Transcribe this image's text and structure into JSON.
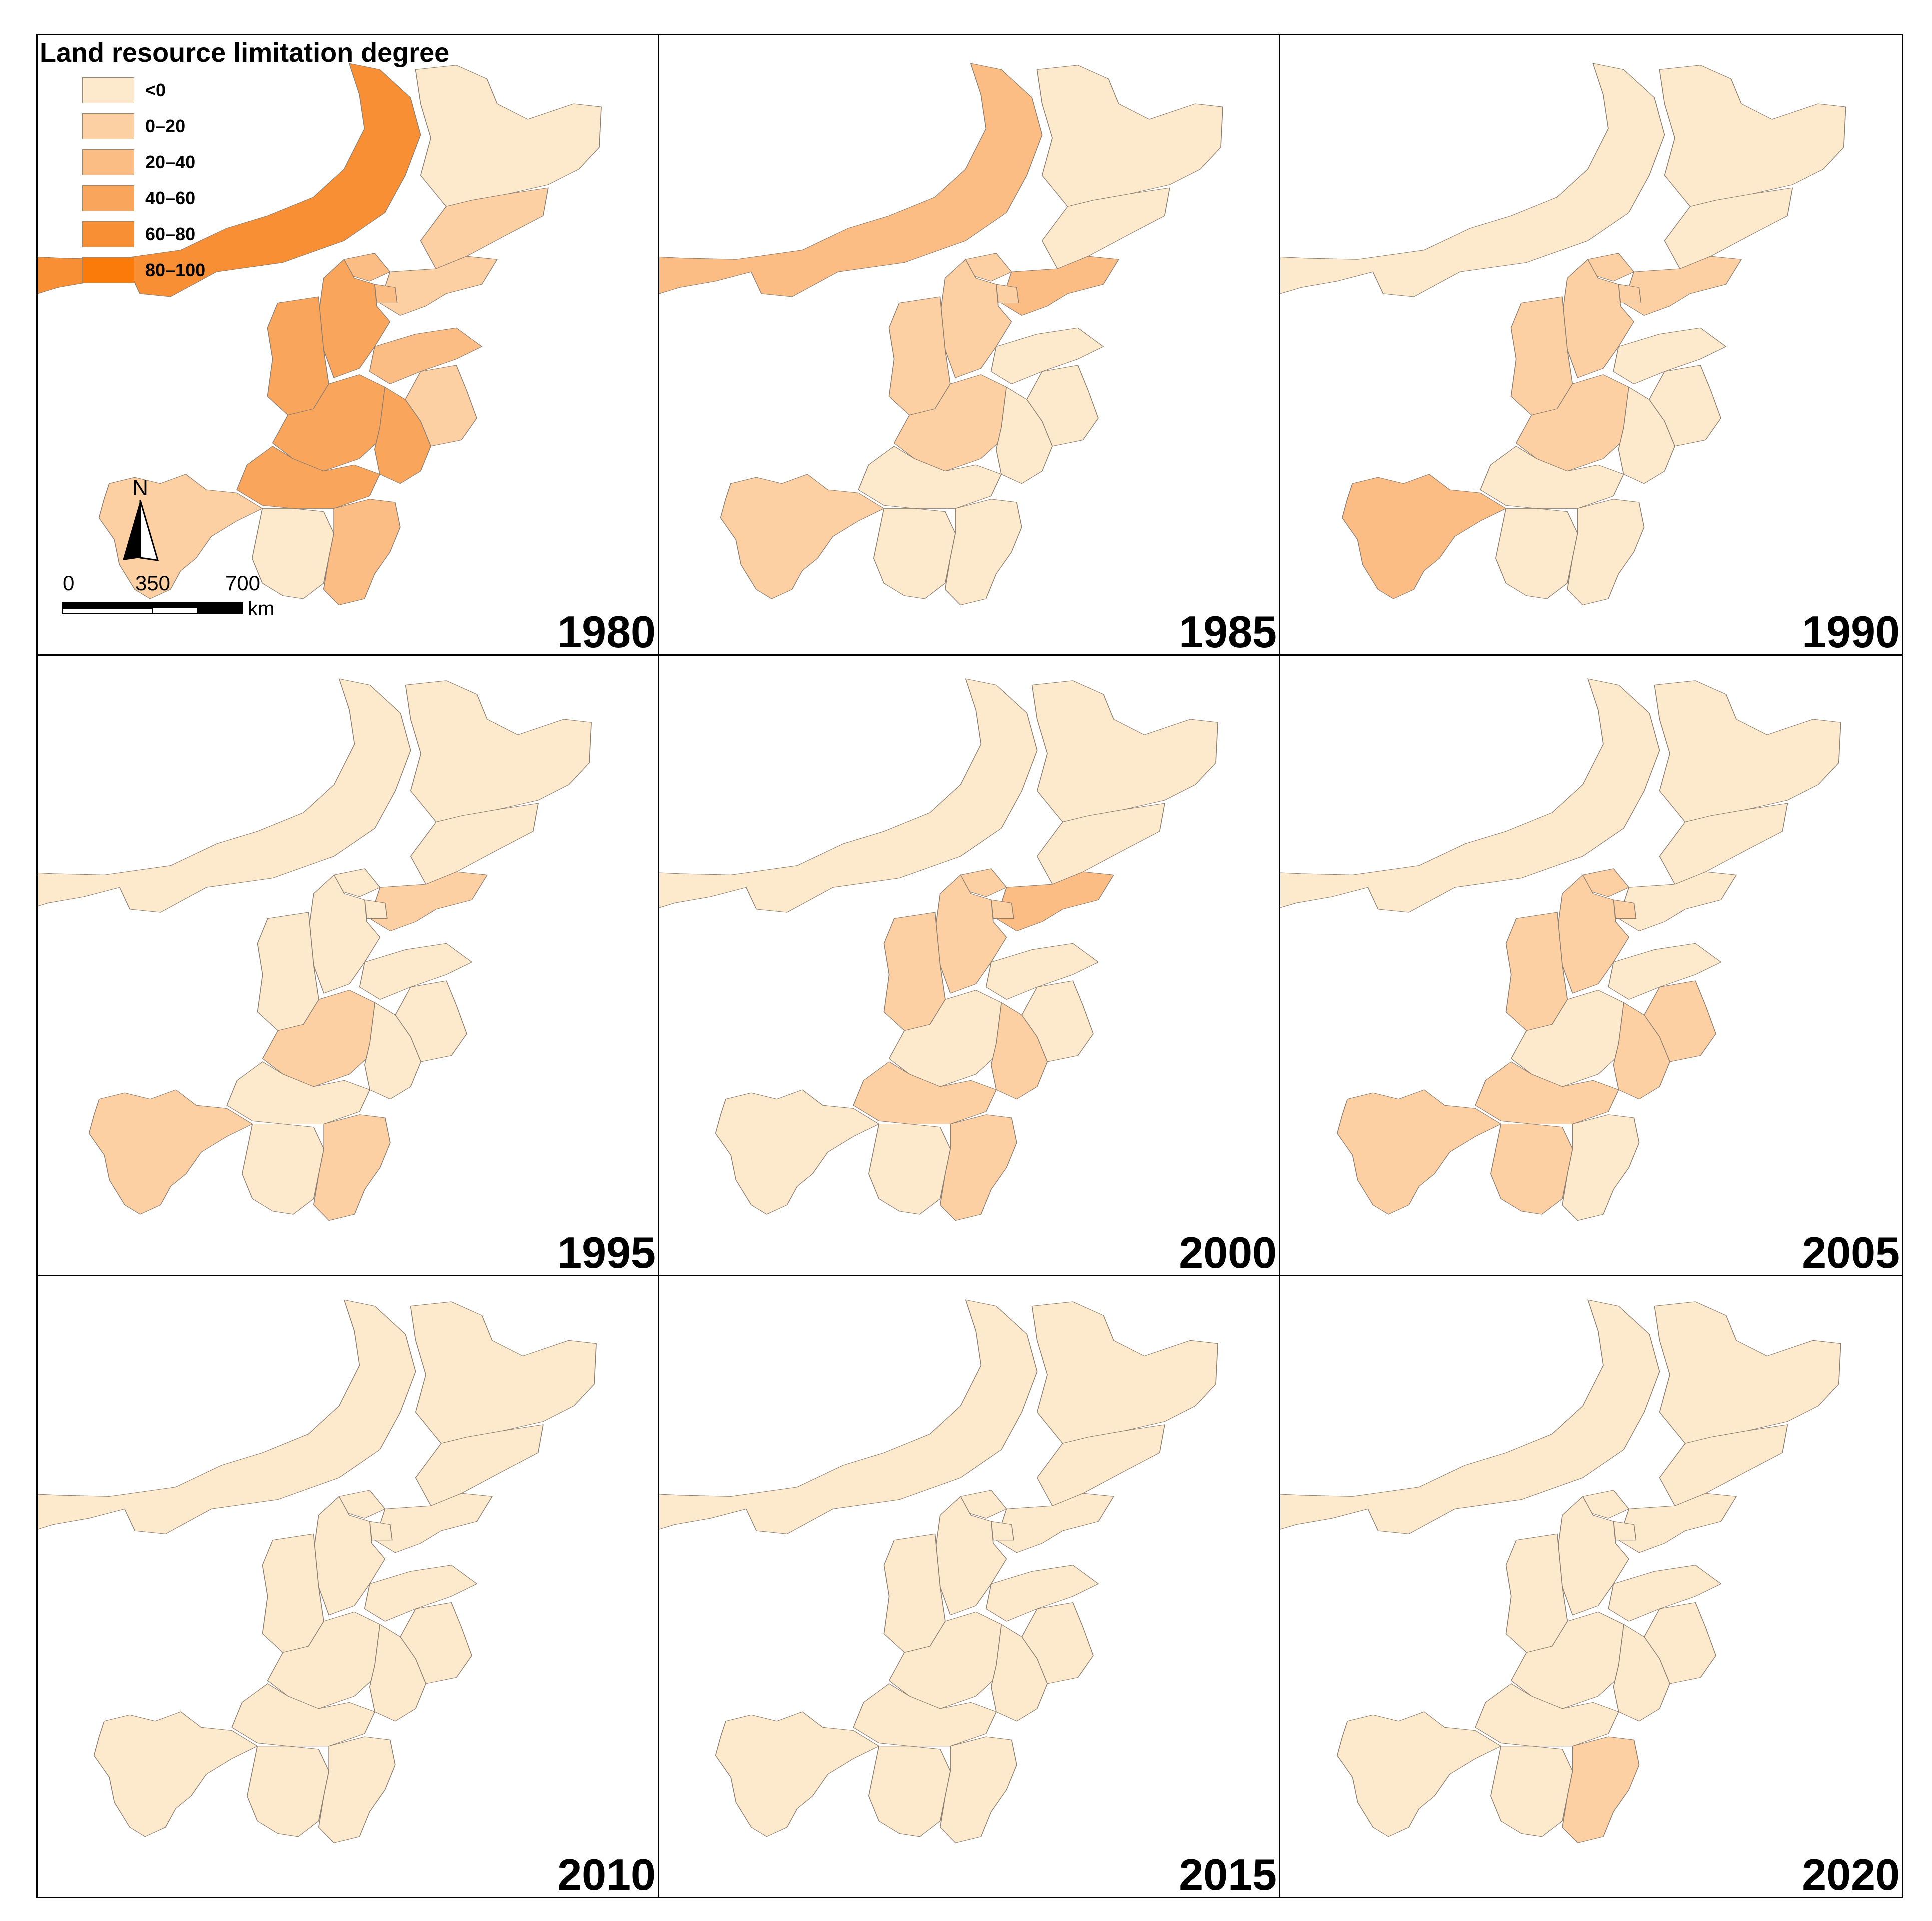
{
  "legend": {
    "title": "Land resource limitation degree",
    "classes": [
      {
        "label": "<0",
        "color": "#fde9cb"
      },
      {
        "label": "0–20",
        "color": "#fdd0a3"
      },
      {
        "label": "20–40",
        "color": "#fcbd84"
      },
      {
        "label": "40–60",
        "color": "#f9a55b"
      },
      {
        "label": "60–80",
        "color": "#f88f34"
      },
      {
        "label": "80–100",
        "color": "#fb7b0a"
      }
    ]
  },
  "north_label": "N",
  "scale_bar": {
    "ticks": [
      "0",
      "350",
      "700"
    ],
    "unit": "km"
  },
  "panels": [
    {
      "year": "1980",
      "classes": {
        "inner_mongolia": 4,
        "heilongjiang": 0,
        "jilin": 1,
        "liaoning": 1,
        "beijing": 2,
        "tianjin": 2,
        "hebei": 3,
        "shanxi": 3,
        "shandong": 2,
        "henan": 3,
        "anhui": 3,
        "jiangsu": 1,
        "hubei": 3,
        "sichuan": 1,
        "hunan": 0,
        "jiangxi": 2
      }
    },
    {
      "year": "1985",
      "classes": {
        "inner_mongolia": 2,
        "heilongjiang": 0,
        "jilin": 0,
        "liaoning": 2,
        "beijing": 1,
        "tianjin": 1,
        "hebei": 1,
        "shanxi": 1,
        "shandong": 0,
        "henan": 1,
        "anhui": 0,
        "jiangsu": 0,
        "hubei": 0,
        "sichuan": 1,
        "hunan": 0,
        "jiangxi": 0
      }
    },
    {
      "year": "1990",
      "classes": {
        "inner_mongolia": 0,
        "heilongjiang": 0,
        "jilin": 0,
        "liaoning": 1,
        "beijing": 1,
        "tianjin": 1,
        "hebei": 1,
        "shanxi": 1,
        "shandong": 0,
        "henan": 1,
        "anhui": 0,
        "jiangsu": 0,
        "hubei": 0,
        "sichuan": 2,
        "hunan": 0,
        "jiangxi": 0
      }
    },
    {
      "year": "1995",
      "classes": {
        "inner_mongolia": 0,
        "heilongjiang": 0,
        "jilin": 0,
        "liaoning": 1,
        "beijing": 0,
        "tianjin": 0,
        "hebei": 0,
        "shanxi": 0,
        "shandong": 0,
        "henan": 1,
        "anhui": 0,
        "jiangsu": 0,
        "hubei": 0,
        "sichuan": 1,
        "hunan": 0,
        "jiangxi": 1
      }
    },
    {
      "year": "2000",
      "classes": {
        "inner_mongolia": 0,
        "heilongjiang": 0,
        "jilin": 0,
        "liaoning": 2,
        "beijing": 1,
        "tianjin": 1,
        "hebei": 1,
        "shanxi": 1,
        "shandong": 0,
        "henan": 0,
        "anhui": 1,
        "jiangsu": 0,
        "hubei": 1,
        "sichuan": 0,
        "hunan": 0,
        "jiangxi": 1
      }
    },
    {
      "year": "2005",
      "classes": {
        "inner_mongolia": 0,
        "heilongjiang": 0,
        "jilin": 0,
        "liaoning": 0,
        "beijing": 1,
        "tianjin": 1,
        "hebei": 1,
        "shanxi": 1,
        "shandong": 0,
        "henan": 0,
        "anhui": 1,
        "jiangsu": 1,
        "hubei": 1,
        "sichuan": 1,
        "hunan": 1,
        "jiangxi": 0
      }
    },
    {
      "year": "2010",
      "classes": {
        "inner_mongolia": 0,
        "heilongjiang": 0,
        "jilin": 0,
        "liaoning": 0,
        "beijing": 0,
        "tianjin": 0,
        "hebei": 0,
        "shanxi": 0,
        "shandong": 0,
        "henan": 0,
        "anhui": 0,
        "jiangsu": 0,
        "hubei": 0,
        "sichuan": 0,
        "hunan": 0,
        "jiangxi": 0
      }
    },
    {
      "year": "2015",
      "classes": {
        "inner_mongolia": 0,
        "heilongjiang": 0,
        "jilin": 0,
        "liaoning": 0,
        "beijing": 0,
        "tianjin": 0,
        "hebei": 0,
        "shanxi": 0,
        "shandong": 0,
        "henan": 0,
        "anhui": 0,
        "jiangsu": 0,
        "hubei": 0,
        "sichuan": 0,
        "hunan": 0,
        "jiangxi": 0
      }
    },
    {
      "year": "2020",
      "classes": {
        "inner_mongolia": 0,
        "heilongjiang": 0,
        "jilin": 0,
        "liaoning": 0,
        "beijing": 0,
        "tianjin": 0,
        "hebei": 0,
        "shanxi": 0,
        "shandong": 0,
        "henan": 0,
        "anhui": 0,
        "jiangsu": 0,
        "hubei": 0,
        "sichuan": 0,
        "hunan": 0,
        "jiangxi": 1
      }
    }
  ]
}
